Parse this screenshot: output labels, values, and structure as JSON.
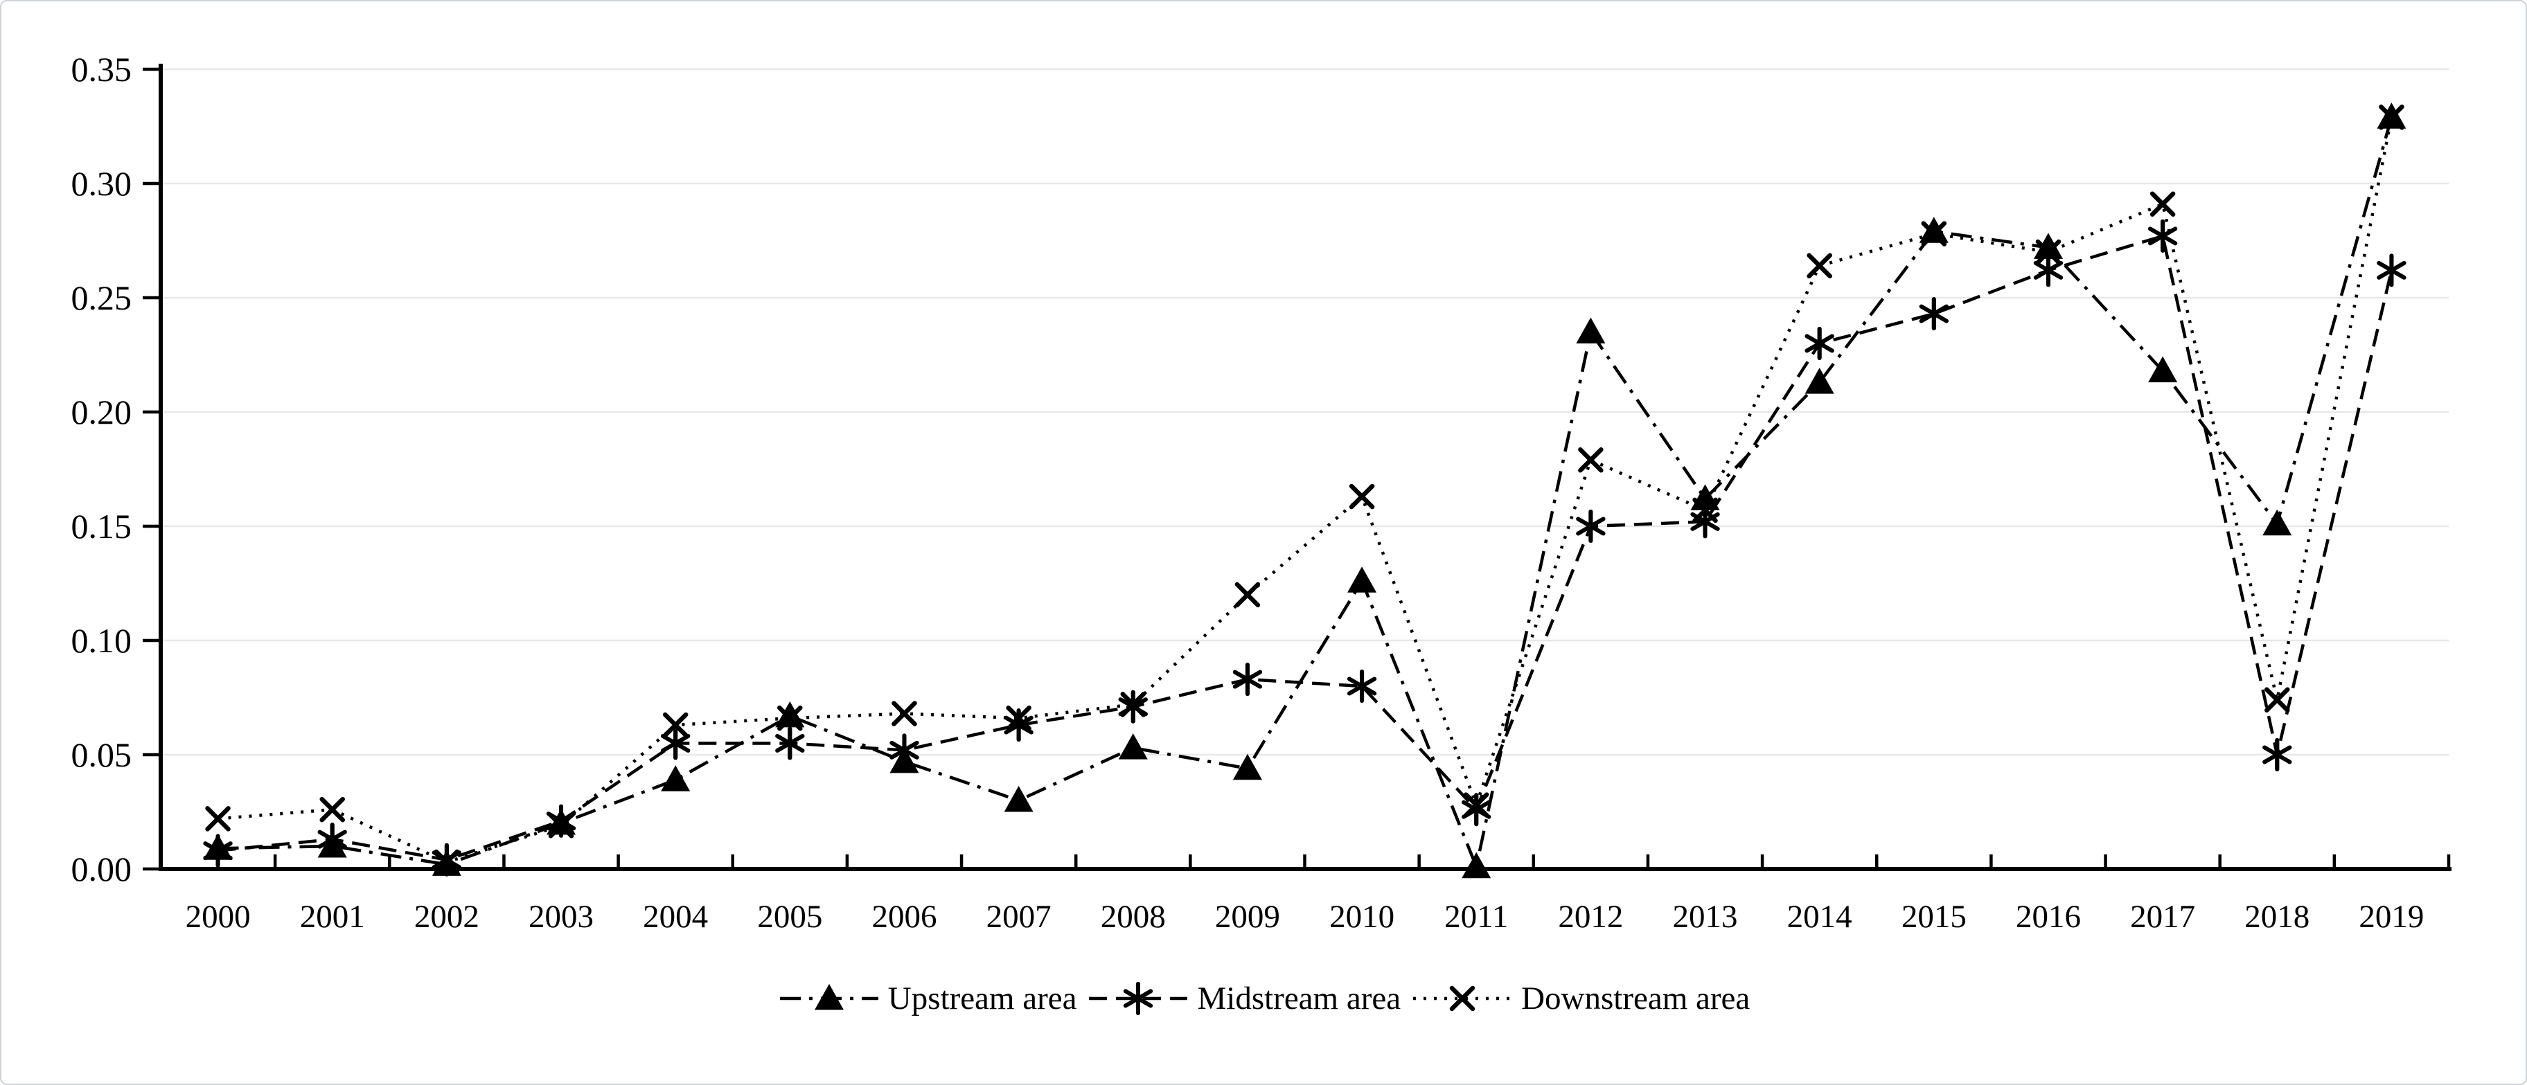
{
  "chart_data": {
    "type": "line",
    "title": "",
    "xlabel": "",
    "ylabel": "",
    "categories": [
      "2000",
      "2001",
      "2002",
      "2003",
      "2004",
      "2005",
      "2006",
      "2007",
      "2008",
      "2009",
      "2010",
      "2011",
      "2012",
      "2013",
      "2014",
      "2015",
      "2016",
      "2017",
      "2018",
      "2019"
    ],
    "series": [
      {
        "name": "Upstream area",
        "marker": "filled-triangle",
        "line_style": "dash-dot",
        "values": [
          0.009,
          0.01,
          0.002,
          0.02,
          0.039,
          0.067,
          0.047,
          0.03,
          0.053,
          0.044,
          0.126,
          0.001,
          0.235,
          0.162,
          0.213,
          0.279,
          0.272,
          0.218,
          0.151,
          0.329
        ]
      },
      {
        "name": "Midstream area",
        "marker": "asterisk",
        "line_style": "dashed",
        "values": [
          0.008,
          0.013,
          0.004,
          0.021,
          0.055,
          0.055,
          0.052,
          0.063,
          0.071,
          0.083,
          0.08,
          0.026,
          0.15,
          0.152,
          0.23,
          0.243,
          0.262,
          0.277,
          0.05,
          0.262
        ]
      },
      {
        "name": "Downstream area",
        "marker": "x-cross",
        "line_style": "dotted",
        "values": [
          0.022,
          0.026,
          0.003,
          0.019,
          0.063,
          0.066,
          0.068,
          0.066,
          0.072,
          0.12,
          0.163,
          0.028,
          0.179,
          0.157,
          0.264,
          0.278,
          0.27,
          0.291,
          0.074,
          0.329
        ]
      }
    ],
    "ylim": [
      0,
      0.35
    ],
    "ytick_step": 0.05,
    "ytick_labels": [
      "0.00",
      "0.05",
      "0.10",
      "0.15",
      "0.20",
      "0.25",
      "0.30",
      "0.35"
    ],
    "grid": "horizontal",
    "legend_position": "bottom-center",
    "colors": {
      "series": "#000000",
      "axis": "#000000",
      "grid": "#e7e7e7",
      "text": "#000000",
      "background": "#ffffff",
      "figure_border": "#ccd2d8"
    }
  }
}
